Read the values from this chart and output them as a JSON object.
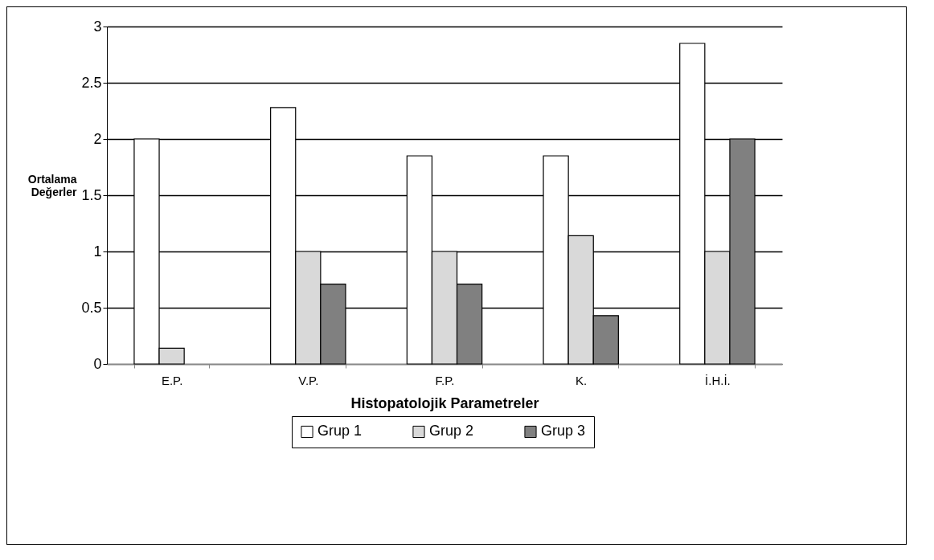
{
  "chart_data": {
    "type": "bar",
    "xlabel": "Histopatolojik Parametreler",
    "ylabel": "Ortalama Değerler",
    "categories": [
      "E.P.",
      "V.P.",
      "F.P.",
      "K.",
      "İ.H.İ."
    ],
    "series": [
      {
        "name": "Grup 1",
        "color": "#ffffff",
        "values": [
          2.0,
          2.28,
          1.85,
          1.85,
          2.85
        ]
      },
      {
        "name": "Grup 2",
        "color": "#d9d9d9",
        "values": [
          0.14,
          1.0,
          1.0,
          1.14,
          1.0
        ]
      },
      {
        "name": "Grup 3",
        "color": "#808080",
        "values": [
          0,
          0.71,
          0.71,
          0.43,
          2.0
        ]
      }
    ],
    "ylim": [
      0,
      3
    ],
    "yticks": [
      0,
      0.5,
      1,
      1.5,
      2,
      2.5,
      3
    ],
    "grid": "y",
    "legend": "bottom"
  }
}
